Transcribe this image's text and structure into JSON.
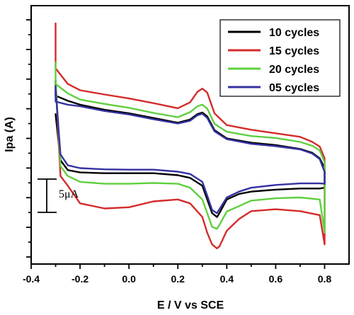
{
  "chart_data": {
    "type": "line",
    "title": "",
    "xlabel": "E / V vs SCE",
    "ylabel": "Ipa (A)",
    "xlim": [
      -0.4,
      0.9
    ],
    "x_ticks": [
      -0.4,
      -0.2,
      0.0,
      0.2,
      0.4,
      0.6,
      0.8
    ],
    "x_tick_labels": [
      "-0.4",
      "-0.2",
      "0.0",
      "0.2",
      "0.4",
      "0.6",
      "0.8"
    ],
    "ylim": [
      -33,
      33
    ],
    "y_tick_labels_shown": false,
    "grid": false,
    "legend": {
      "position": "top-right",
      "entries": [
        "10 cycles",
        "15 cycles",
        "20 cycles",
        "05 cycles"
      ]
    },
    "scale_bar": {
      "label": "5μA",
      "value_uA": 5
    },
    "series": [
      {
        "name": "10 cycles",
        "color": "#000000",
        "x": [
          -0.3,
          -0.3,
          -0.25,
          -0.2,
          -0.1,
          0.0,
          0.1,
          0.2,
          0.25,
          0.28,
          0.3,
          0.32,
          0.35,
          0.4,
          0.5,
          0.6,
          0.7,
          0.75,
          0.78,
          0.8,
          0.8,
          0.78,
          0.7,
          0.6,
          0.5,
          0.45,
          0.4,
          0.37,
          0.36,
          0.34,
          0.32,
          0.3,
          0.25,
          0.2,
          0.1,
          0.0,
          -0.1,
          -0.2,
          -0.25,
          -0.28,
          -0.3
        ],
        "y": [
          14.0,
          10.0,
          8.7,
          7.7,
          6.4,
          5.5,
          4.3,
          3.1,
          3.9,
          5.3,
          5.7,
          4.7,
          1.2,
          -0.9,
          -2.0,
          -2.6,
          -3.6,
          -4.6,
          -6.0,
          -8.5,
          -13.5,
          -13.7,
          -13.7,
          -14.0,
          -14.5,
          -15.1,
          -16.5,
          -20.0,
          -21.0,
          -20.0,
          -16.5,
          -13.0,
          -11.0,
          -10.3,
          -9.8,
          -9.8,
          -9.8,
          -9.6,
          -9.0,
          -6.5,
          5.3
        ]
      },
      {
        "name": "15 cycles",
        "color": "#d42b2b",
        "x": [
          -0.3,
          -0.3,
          -0.25,
          -0.2,
          -0.1,
          0.0,
          0.1,
          0.2,
          0.25,
          0.28,
          0.3,
          0.32,
          0.35,
          0.4,
          0.5,
          0.6,
          0.7,
          0.75,
          0.78,
          0.8,
          0.8,
          0.78,
          0.7,
          0.6,
          0.5,
          0.45,
          0.4,
          0.37,
          0.36,
          0.34,
          0.32,
          0.3,
          0.25,
          0.2,
          0.1,
          0.0,
          -0.1,
          -0.2,
          -0.25,
          -0.28,
          -0.3
        ],
        "y": [
          28.5,
          17.0,
          13.0,
          11.4,
          10.3,
          9.3,
          8.1,
          6.8,
          8.3,
          11.0,
          11.8,
          10.8,
          5.5,
          2.5,
          1.3,
          0.4,
          -0.5,
          -1.8,
          -3.0,
          -6.0,
          -28.0,
          -20.5,
          -19.5,
          -19.0,
          -19.5,
          -21.5,
          -24.5,
          -28.5,
          -29.0,
          -28.0,
          -25.0,
          -21.0,
          -17.5,
          -16.5,
          -17.0,
          -18.5,
          -18.8,
          -17.5,
          -13.0,
          -10.5,
          13.5
        ]
      },
      {
        "name": "20 cycles",
        "color": "#5fcf3f",
        "x": [
          -0.3,
          -0.3,
          -0.25,
          -0.2,
          -0.1,
          0.0,
          0.1,
          0.2,
          0.25,
          0.28,
          0.3,
          0.32,
          0.35,
          0.4,
          0.5,
          0.6,
          0.7,
          0.75,
          0.78,
          0.8,
          0.8,
          0.78,
          0.7,
          0.6,
          0.5,
          0.45,
          0.4,
          0.37,
          0.36,
          0.34,
          0.32,
          0.3,
          0.25,
          0.2,
          0.1,
          0.0,
          -0.1,
          -0.2,
          -0.25,
          -0.28,
          -0.3
        ],
        "y": [
          18.5,
          13.0,
          10.6,
          9.0,
          7.9,
          6.9,
          5.6,
          4.5,
          5.8,
          7.3,
          7.7,
          6.7,
          2.8,
          0.8,
          -0.3,
          -0.8,
          -1.8,
          -2.8,
          -4.0,
          -7.0,
          -25.0,
          -16.5,
          -16.0,
          -16.2,
          -16.8,
          -18.2,
          -19.6,
          -23.0,
          -24.0,
          -23.5,
          -20.0,
          -16.5,
          -13.5,
          -12.5,
          -12.3,
          -12.5,
          -12.5,
          -12.0,
          -10.5,
          -8.0,
          14.3
        ]
      },
      {
        "name": "05 cycles",
        "color": "#3432a0",
        "x": [
          -0.3,
          -0.3,
          -0.25,
          -0.2,
          -0.1,
          0.0,
          0.1,
          0.2,
          0.25,
          0.28,
          0.3,
          0.32,
          0.35,
          0.4,
          0.5,
          0.6,
          0.7,
          0.75,
          0.78,
          0.8,
          0.8,
          0.78,
          0.7,
          0.6,
          0.5,
          0.45,
          0.4,
          0.37,
          0.36,
          0.34,
          0.32,
          0.3,
          0.25,
          0.2,
          0.1,
          0.0,
          -0.1,
          -0.2,
          -0.25,
          -0.28,
          -0.3
        ],
        "y": [
          12.5,
          8.5,
          7.7,
          7.3,
          6.1,
          5.2,
          4.0,
          2.9,
          3.6,
          5.0,
          5.4,
          4.3,
          0.9,
          -1.1,
          -2.3,
          -2.9,
          -3.7,
          -4.8,
          -6.2,
          -9.5,
          -12.5,
          -12.4,
          -12.4,
          -12.8,
          -13.5,
          -14.5,
          -16.0,
          -19.0,
          -20.0,
          -19.2,
          -15.5,
          -12.0,
          -10.0,
          -9.4,
          -8.9,
          -8.9,
          -8.8,
          -8.5,
          -7.8,
          -5.0,
          11.8
        ]
      }
    ]
  }
}
